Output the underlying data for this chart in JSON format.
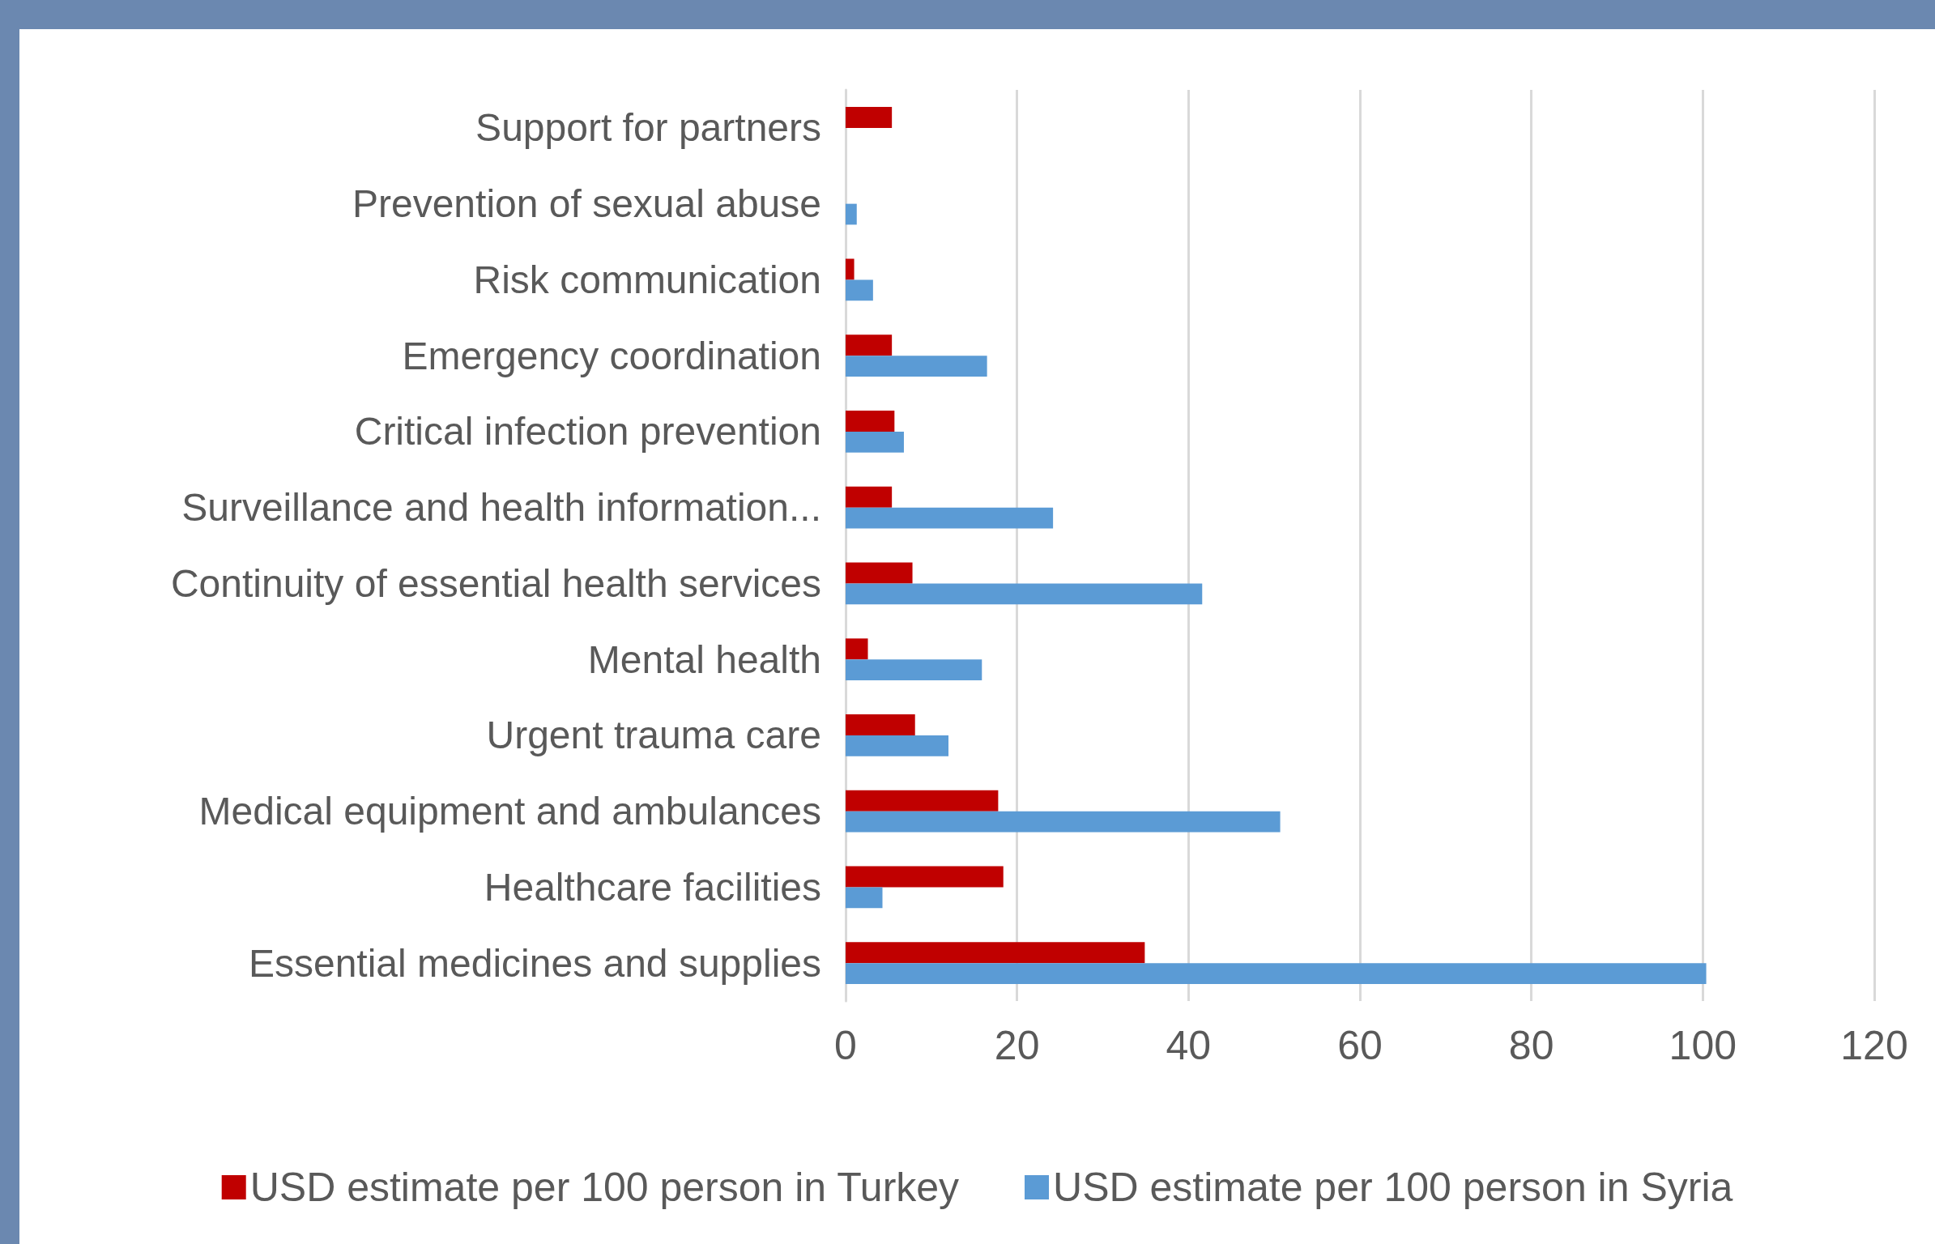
{
  "chart_data": {
    "type": "bar",
    "orientation": "horizontal",
    "categories": [
      "Support for partners",
      "Prevention of sexual abuse",
      "Risk communication",
      "Emergency coordination",
      "Critical infection prevention",
      "Surveillance and health information...",
      "Continuity of essential health services",
      "Mental health",
      "Urgent trauma care",
      "Medical equipment and ambulances",
      "Healthcare facilities",
      "Essential medicines and supplies"
    ],
    "series": [
      {
        "name": "USD estimate per 100 person in Turkey",
        "color": "#c00000",
        "values": [
          5.4,
          null,
          1.0,
          5.4,
          5.7,
          5.4,
          7.8,
          2.6,
          8.1,
          17.8,
          18.4,
          34.9
        ]
      },
      {
        "name": "USD estimate per 100 person in Syria",
        "color": "#5b9bd5",
        "values": [
          null,
          1.3,
          3.2,
          16.5,
          6.8,
          24.2,
          41.6,
          15.9,
          12.0,
          50.7,
          4.3,
          100.4
        ]
      }
    ],
    "xlim": [
      0,
      120
    ],
    "xticks": [
      0,
      20,
      40,
      60,
      80,
      100,
      120
    ],
    "grid": "x",
    "legend": "bottom"
  }
}
